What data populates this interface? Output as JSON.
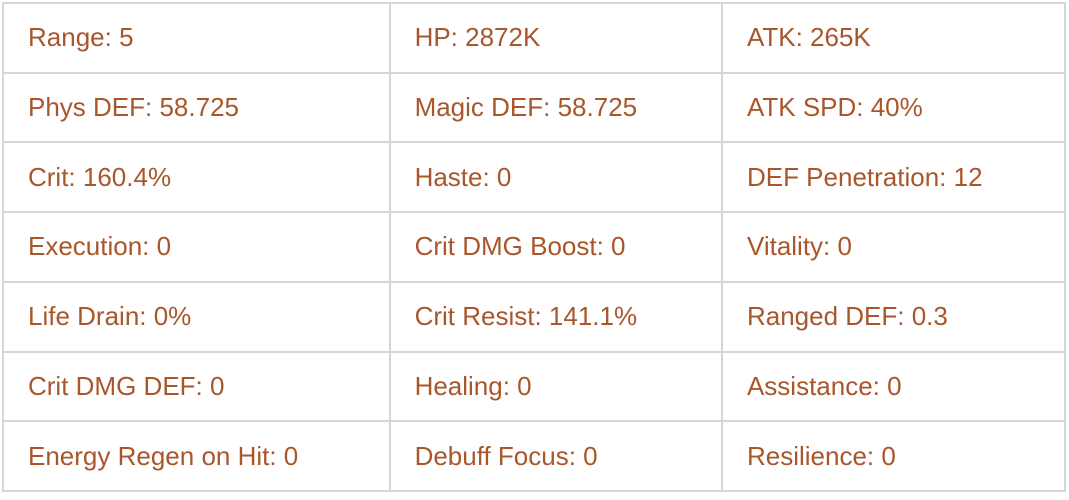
{
  "stats_table": {
    "text_color": "#a9562b",
    "border_color": "#d6d6d6",
    "background_color": "#ffffff",
    "rows": [
      [
        "Range: 5",
        "HP: 2872K",
        "ATK: 265K"
      ],
      [
        "Phys DEF: 58.725",
        "Magic DEF: 58.725",
        "ATK SPD: 40%"
      ],
      [
        "Crit: 160.4%",
        "Haste: 0",
        "DEF Penetration: 12"
      ],
      [
        "Execution: 0",
        "Crit DMG Boost: 0",
        "Vitality: 0"
      ],
      [
        "Life Drain: 0%",
        "Crit Resist: 141.1%",
        "Ranged DEF: 0.3"
      ],
      [
        "Crit DMG DEF: 0",
        "Healing: 0",
        "Assistance: 0"
      ],
      [
        "Energy Regen on Hit: 0",
        "Debuff Focus: 0",
        "Resilience: 0"
      ]
    ]
  }
}
